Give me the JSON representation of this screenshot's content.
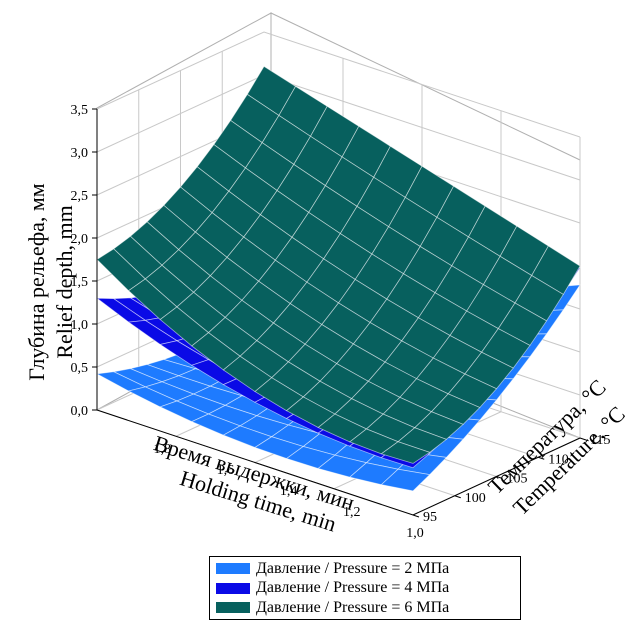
{
  "chart_data": {
    "type": "surface3d",
    "title": "",
    "zlabel_ru": "Глубина рельефа, мм",
    "zlabel_en": "Relief depth, mm",
    "xlabel_ru": "Время выдержки, мин",
    "xlabel_en": "Holding time, min",
    "ylabel_ru": "Температура, °С",
    "ylabel_en": "Temperature, °C",
    "z_ticks": [
      "0,0",
      "0,5",
      "1,0",
      "1,5",
      "2,0",
      "2,5",
      "3,0",
      "3,5"
    ],
    "x_ticks": [
      "1,8",
      "1,6",
      "1,4",
      "1,2",
      "1,0"
    ],
    "y_ticks": [
      "95",
      "100",
      "105",
      "110",
      "115"
    ],
    "zlim": [
      0,
      3.5
    ],
    "xlim": [
      1.0,
      2.0
    ],
    "ylim": [
      95,
      115
    ],
    "grid": true,
    "legend_position": "bottom-center",
    "series": [
      {
        "name": "Давление / Pressure = 2 МПа",
        "color": "#1e7bff",
        "corner_values": {
          "x2.0_y95": 0.42,
          "x1.0_y95": 0.28,
          "x1.0_y115": 1.78,
          "x2.0_y115": 0.28
        }
      },
      {
        "name": "Давление / Pressure = 4 МПа",
        "color": "#0a0ae6",
        "corner_values": {
          "x2.0_y95": 1.3,
          "x1.0_y95": 0.55,
          "x1.0_y115": 1.98,
          "x2.0_y115": 1.0
        }
      },
      {
        "name": "Давление / Pressure = 6 МПа",
        "color": "#07605e",
        "corner_values": {
          "x2.0_y95": 1.75,
          "x1.0_y95": 0.6,
          "x1.0_y115": 2.0,
          "x2.0_y115": 3.1
        }
      }
    ]
  }
}
